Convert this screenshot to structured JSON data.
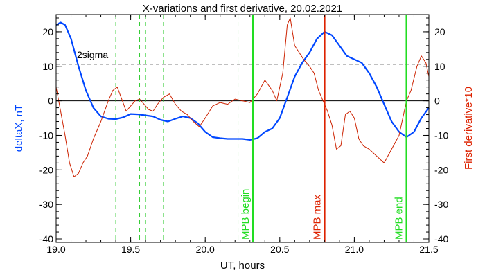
{
  "chart_data": {
    "type": "line",
    "title": "X-variations and first derivative, 20.02.2021",
    "xlabel": "UT, hours",
    "ylabel_left": "deltaX, nT",
    "ylabel_right": "First derivative*10",
    "xlim": [
      19.0,
      21.5
    ],
    "ylim": [
      -41,
      25
    ],
    "x_ticks": [
      19.0,
      19.5,
      20.0,
      20.5,
      21.0,
      21.5
    ],
    "x_tick_labels": [
      "19.0",
      "19.5",
      "20.0",
      "20.5",
      "21.0",
      "21.5"
    ],
    "y_ticks": [
      20,
      10,
      0,
      -10,
      -20,
      -30,
      -40
    ],
    "y_tick_labels": [
      "20",
      "10",
      "0",
      "-10",
      "-20",
      "-30",
      "-40"
    ],
    "colors": {
      "deltaX": "#0047ff",
      "derivative": "#cc2200",
      "mpb_green": "#22dd22",
      "mpb_red": "#dd2200",
      "dashed_green": "#33cc33",
      "axis_left": "#0047ff",
      "axis_right": "#dd2200"
    },
    "sigma_line": {
      "value": 10.6,
      "label": "2sigma"
    },
    "zero_line": 0,
    "dashed_markers": [
      19.4,
      19.56,
      19.6,
      19.72,
      20.22
    ],
    "vertical_lines": [
      {
        "x": 20.32,
        "label": "MPB begin",
        "color": "#22dd22"
      },
      {
        "x": 20.8,
        "label": "MPB max",
        "color": "#dd2200"
      },
      {
        "x": 21.35,
        "label": "MPB end",
        "color": "#22dd22"
      }
    ],
    "series": [
      {
        "name": "deltaX",
        "x": [
          19.0,
          19.03,
          19.06,
          19.1,
          19.15,
          19.2,
          19.25,
          19.3,
          19.35,
          19.4,
          19.45,
          19.5,
          19.55,
          19.6,
          19.65,
          19.7,
          19.75,
          19.8,
          19.85,
          19.9,
          19.95,
          20.0,
          20.05,
          20.1,
          20.15,
          20.2,
          20.25,
          20.3,
          20.35,
          20.4,
          20.45,
          20.5,
          20.55,
          20.6,
          20.65,
          20.7,
          20.75,
          20.8,
          20.85,
          20.9,
          20.95,
          21.0,
          21.05,
          21.1,
          21.15,
          21.2,
          21.25,
          21.3,
          21.35,
          21.4,
          21.45,
          21.5
        ],
        "y": [
          22,
          22.7,
          22,
          18,
          10,
          3,
          -2,
          -4.5,
          -5.2,
          -5.3,
          -4.8,
          -3.8,
          -3.9,
          -4.2,
          -4.5,
          -5.5,
          -6,
          -5.2,
          -4.5,
          -5,
          -6.5,
          -9,
          -10.5,
          -10.8,
          -11,
          -11,
          -11,
          -11.3,
          -10.8,
          -9,
          -8,
          -5,
          1,
          7,
          11,
          14,
          18,
          20,
          19,
          16,
          13,
          12,
          11,
          8,
          4,
          -1,
          -6,
          -9,
          -10.5,
          -9,
          -5,
          -2
        ]
      },
      {
        "name": "derivative",
        "x": [
          19.0,
          19.03,
          19.06,
          19.09,
          19.12,
          19.15,
          19.18,
          19.21,
          19.25,
          19.3,
          19.35,
          19.38,
          19.41,
          19.44,
          19.47,
          19.5,
          19.53,
          19.56,
          19.59,
          19.62,
          19.65,
          19.68,
          19.72,
          19.76,
          19.8,
          19.84,
          19.88,
          19.92,
          19.96,
          20.0,
          20.05,
          20.1,
          20.15,
          20.2,
          20.25,
          20.3,
          20.35,
          20.4,
          20.45,
          20.48,
          20.52,
          20.55,
          20.57,
          20.6,
          20.63,
          20.66,
          20.7,
          20.73,
          20.76,
          20.79,
          20.82,
          20.85,
          20.88,
          20.91,
          20.94,
          20.97,
          21.0,
          21.03,
          21.06,
          21.1,
          21.15,
          21.2,
          21.25,
          21.3,
          21.35,
          21.38,
          21.42,
          21.45,
          21.48,
          21.5
        ],
        "y": [
          4,
          -3,
          -10,
          -18,
          -22,
          -21,
          -18,
          -16,
          -11,
          -6,
          0,
          3,
          4,
          0.5,
          -3,
          -1.5,
          0,
          0.5,
          -1,
          -2.5,
          -3,
          -1,
          1,
          2,
          -1,
          -3,
          -4,
          -6,
          -7.5,
          -5,
          -1.5,
          -0.5,
          -1,
          0.5,
          0,
          -0.5,
          2,
          6,
          3,
          0,
          8,
          22,
          24,
          16,
          14,
          12,
          10,
          8,
          3,
          0,
          -3,
          -7,
          -14,
          -13,
          -4,
          -3,
          -5,
          -11,
          -13,
          -14,
          -16,
          -18,
          -14,
          -10,
          0,
          3,
          10,
          13,
          11,
          7
        ]
      }
    ]
  }
}
